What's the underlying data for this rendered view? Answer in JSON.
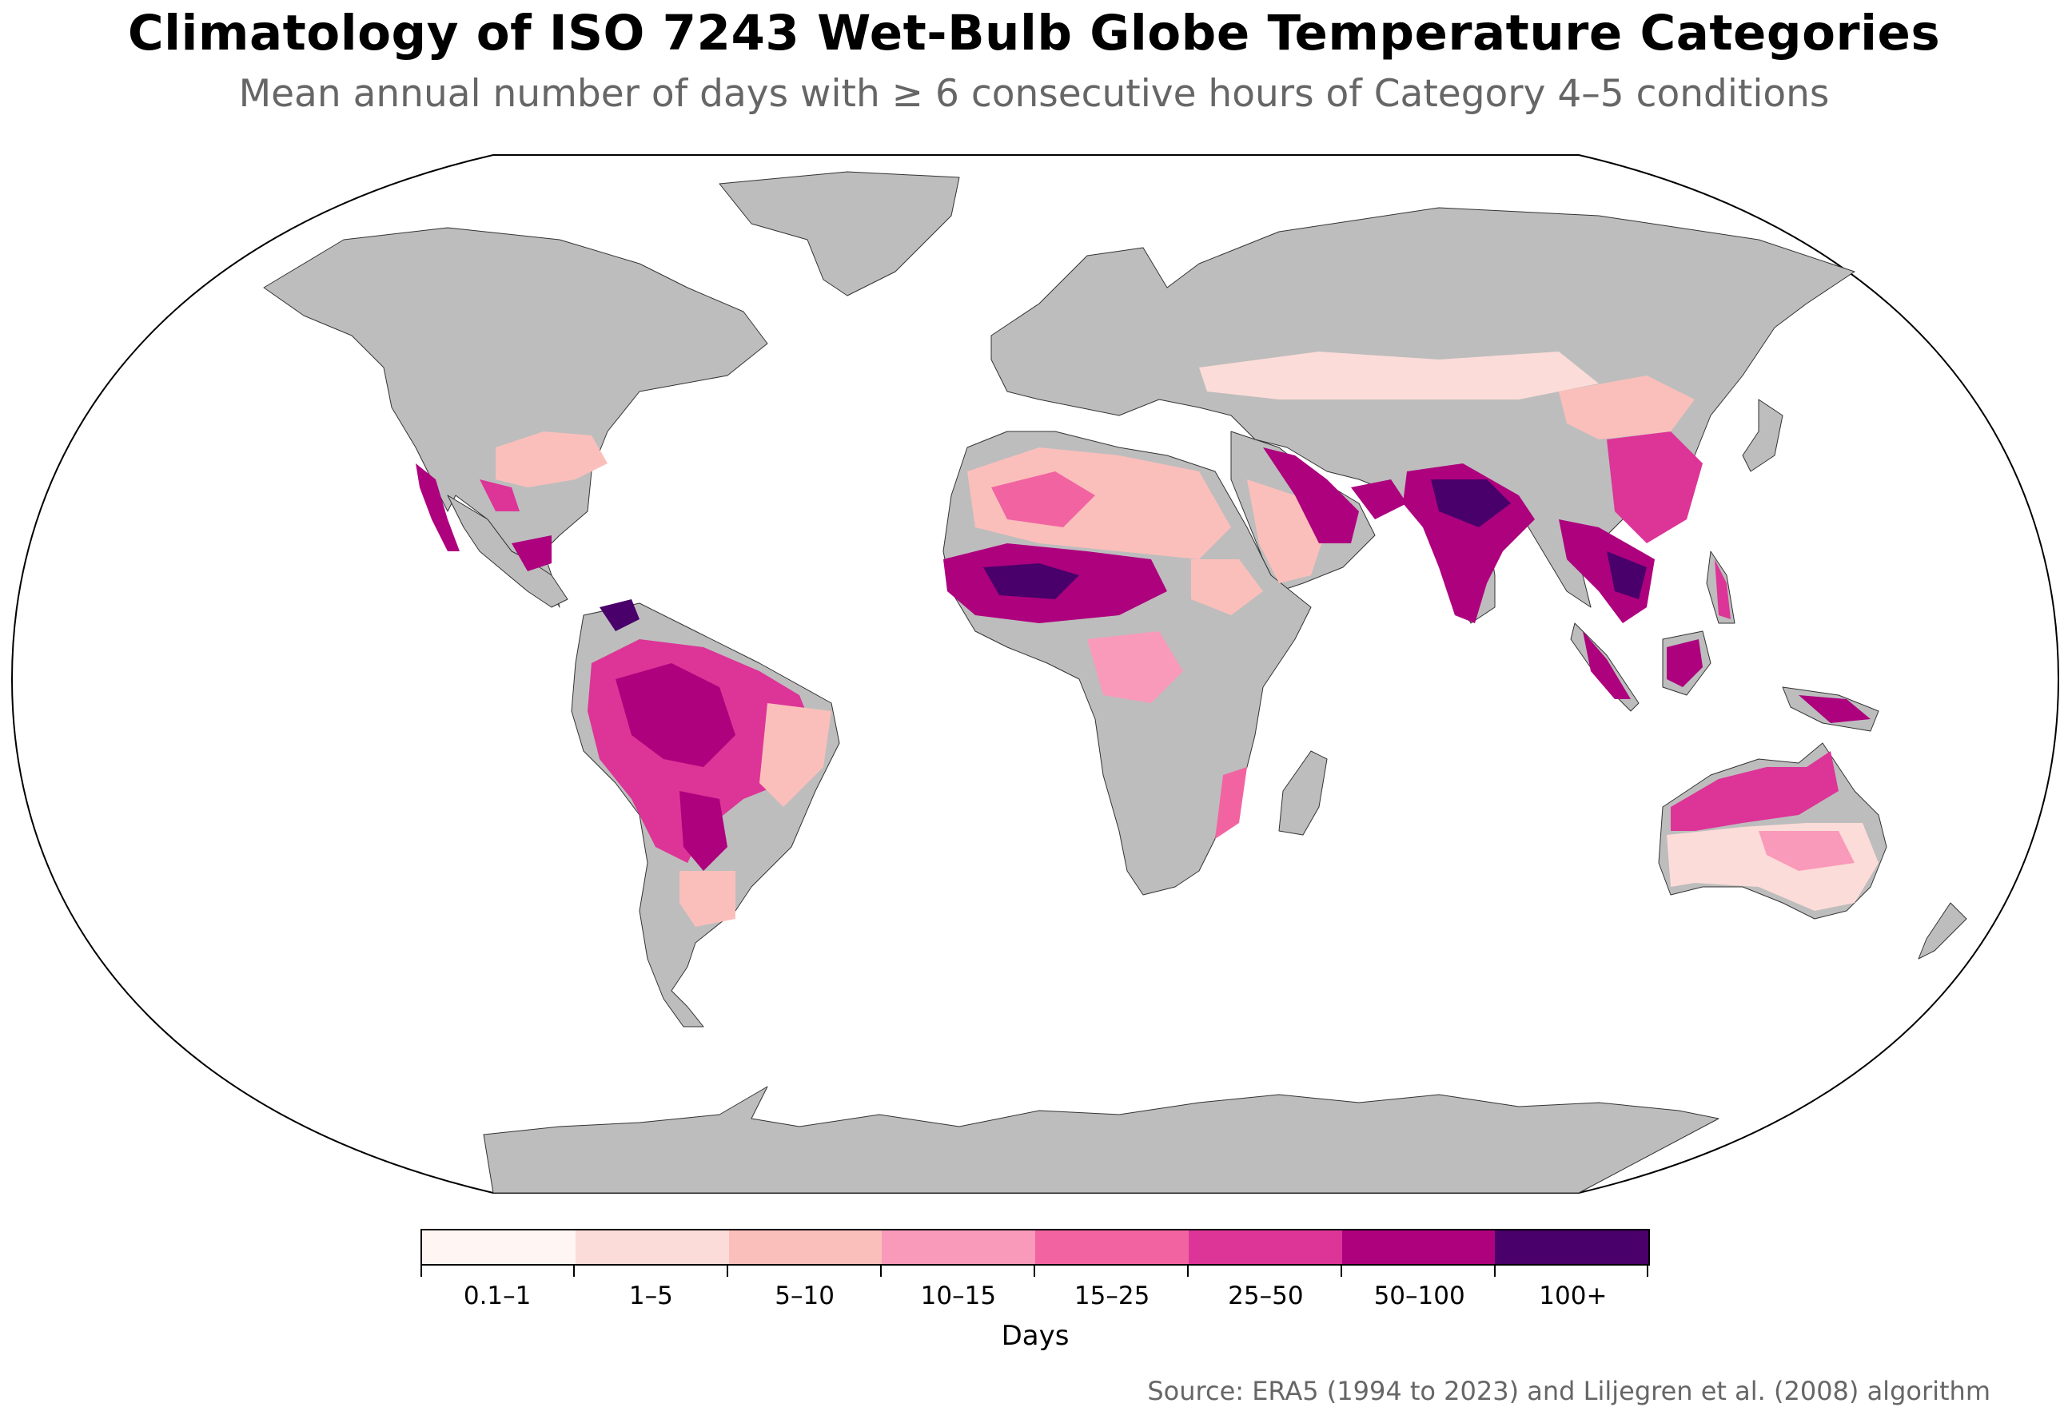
{
  "title": "Climatology of ISO 7243 Wet-Bulb Globe Temperature Categories",
  "subtitle": "Mean annual number of days with ≥ 6 consecutive hours of Category 4–5 conditions",
  "legend": {
    "title": "Days",
    "categories": [
      {
        "label": "0.1–1",
        "color": "#fff5f2"
      },
      {
        "label": "1–5",
        "color": "#fcdcd8"
      },
      {
        "label": "5–10",
        "color": "#fbbfbb"
      },
      {
        "label": "10–15",
        "color": "#f99aba"
      },
      {
        "label": "15–25",
        "color": "#f264a1"
      },
      {
        "label": "25–50",
        "color": "#dd3497"
      },
      {
        "label": "50–100",
        "color": "#ae017e"
      },
      {
        "label": "100+",
        "color": "#49006a"
      }
    ]
  },
  "map": {
    "projection": "Robinson",
    "land_color": "#bdbdbd",
    "ocean_color": "#ffffff",
    "border_color": "#333333"
  },
  "source": "Source: ERA5 (1994 to 2023) and Liljegren et al. (2008) algorithm"
}
